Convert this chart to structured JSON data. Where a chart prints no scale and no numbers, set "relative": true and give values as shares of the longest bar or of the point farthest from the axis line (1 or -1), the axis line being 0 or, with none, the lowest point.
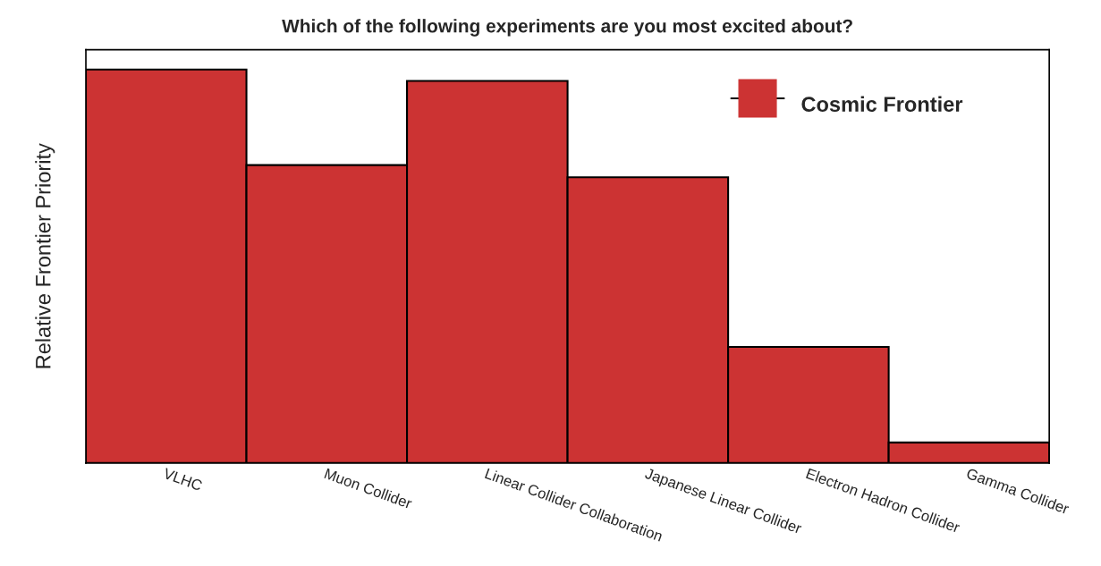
{
  "chart_data": {
    "type": "bar",
    "title": "Which of the following experiments are you most excited about?",
    "ylabel": "Relative Frontier Priority",
    "categories": [
      "VLHC",
      "Muon Collider",
      "Linear Collider Collaboration",
      "Japanese Linear Collider",
      "Electron Hadron Collider",
      "Gamma Collider"
    ],
    "series": [
      {
        "name": "Cosmic Frontier",
        "color": "#cc3333",
        "values": [
          1,
          0.757,
          0.971,
          0.726,
          0.295,
          0.052
        ]
      }
    ],
    "relative": true,
    "legend": "top right"
  }
}
